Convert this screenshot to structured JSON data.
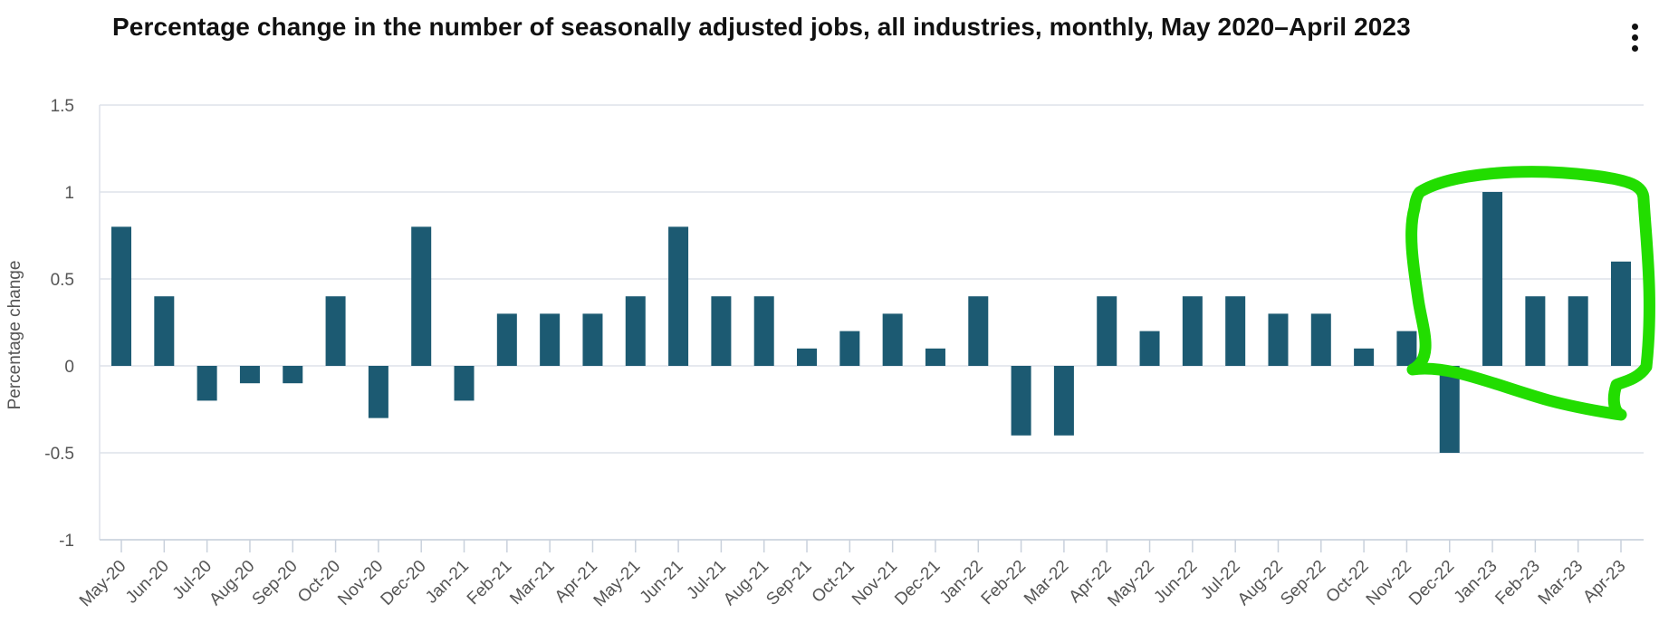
{
  "chart_data": {
    "type": "bar",
    "title": "Percentage change in the number of seasonally adjusted jobs, all industries, monthly, May 2020–April 2023",
    "xlabel": "",
    "ylabel": "Percentage change",
    "ylim": [
      -1,
      1.5
    ],
    "yticks": [
      "1.5",
      "1",
      "0.5",
      "0",
      "-0.5",
      "-1"
    ],
    "ytick_values": [
      1.5,
      1,
      0.5,
      0,
      -0.5,
      -1
    ],
    "grid": true,
    "categories": [
      "May-20",
      "Jun-20",
      "Jul-20",
      "Aug-20",
      "Sep-20",
      "Oct-20",
      "Nov-20",
      "Dec-20",
      "Jan-21",
      "Feb-21",
      "Mar-21",
      "Apr-21",
      "May-21",
      "Jun-21",
      "Jul-21",
      "Aug-21",
      "Sep-21",
      "Oct-21",
      "Nov-21",
      "Dec-21",
      "Jan-22",
      "Feb-22",
      "Mar-22",
      "Apr-22",
      "May-22",
      "Jun-22",
      "Jul-22",
      "Aug-22",
      "Sep-22",
      "Oct-22",
      "Nov-22",
      "Dec-22",
      "Jan-23",
      "Feb-23",
      "Mar-23",
      "Apr-23"
    ],
    "values": [
      0.8,
      0.4,
      -0.2,
      -0.1,
      -0.1,
      0.4,
      -0.3,
      0.8,
      -0.2,
      0.3,
      0.3,
      0.3,
      0.4,
      0.8,
      0.4,
      0.4,
      0.1,
      0.2,
      0.3,
      0.1,
      0.4,
      -0.4,
      -0.4,
      0.4,
      0.2,
      0.4,
      0.4,
      0.3,
      0.3,
      0.1,
      0.2,
      -0.5,
      1.0,
      0.4,
      0.4,
      0.6
    ],
    "bar_color": "#1c5a72",
    "highlight": {
      "description_color": "#22dd00",
      "covers_categories": [
        "Dec-22",
        "Jan-23",
        "Feb-23",
        "Mar-23",
        "Apr-23"
      ]
    }
  },
  "colors": {
    "grid": "#dde2ea",
    "axis_text": "#555555",
    "title": "#111111"
  },
  "menu": {
    "icon": "more-vertical-icon"
  }
}
